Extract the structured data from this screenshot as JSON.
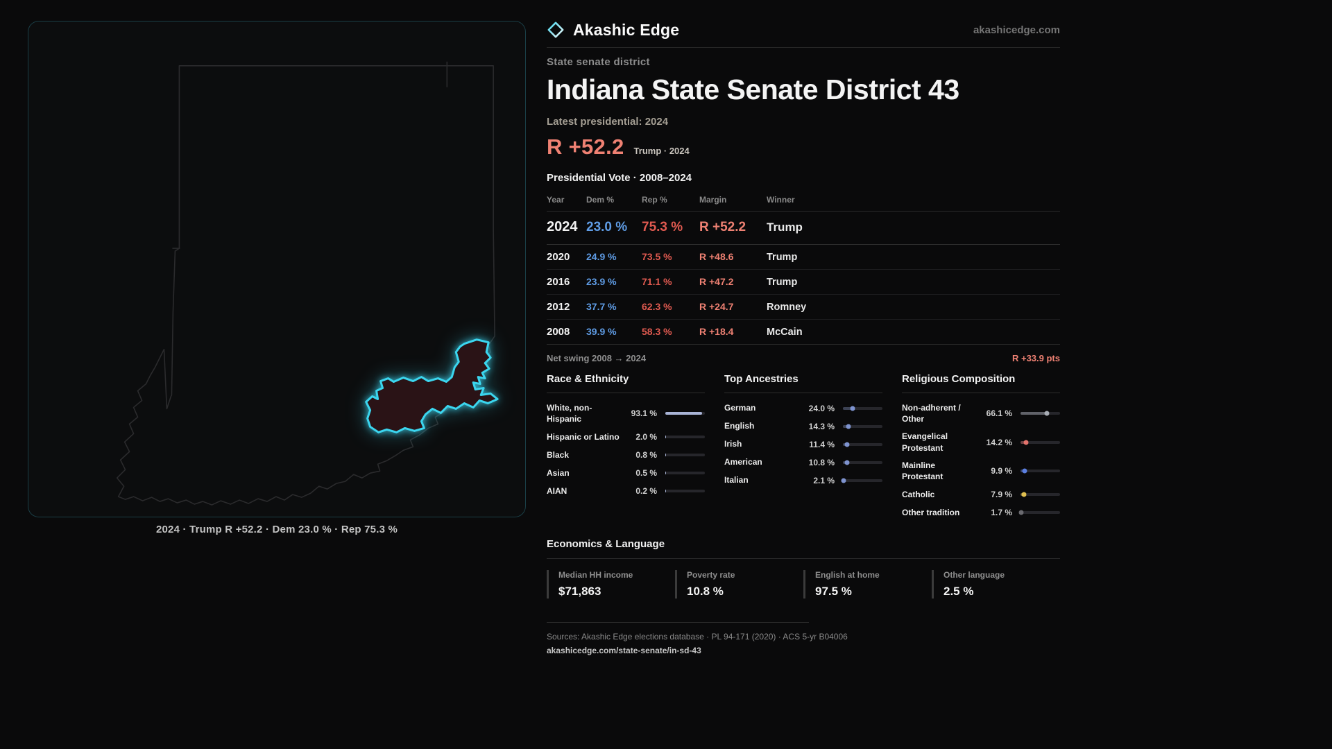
{
  "colors": {
    "accent_cyan": "#3bd6ef",
    "district_fill": "#2a1316",
    "rep_red": "#e05a50",
    "margin_red": "#ef8173",
    "dem_blue": "#5f9ce5",
    "bar_fill": "#a9b4d6",
    "ancestry_fill": "#3c4254",
    "ancestry_dot": "#7e93cf"
  },
  "header": {
    "brand": "Akashic Edge",
    "site": "akashicedge.com"
  },
  "map": {
    "caption": "2024 · Trump R +52.2 · Dem 23.0 % · Rep 75.3 %"
  },
  "profile": {
    "kicker": "State senate district",
    "title": "Indiana State Senate District 43",
    "latest_label": "Latest presidential: 2024",
    "margin_big": "R +52.2",
    "margin_context": "Trump · 2024",
    "table_title": "Presidential Vote · 2008–2024"
  },
  "vote_table": {
    "columns": [
      "Year",
      "Dem %",
      "Rep %",
      "Margin",
      "Winner"
    ],
    "rows": [
      {
        "year": "2024",
        "dem": "23.0 %",
        "rep": "75.3 %",
        "margin": "R +52.2",
        "winner": "Trump"
      },
      {
        "year": "2020",
        "dem": "24.9 %",
        "rep": "73.5 %",
        "margin": "R +48.6",
        "winner": "Trump"
      },
      {
        "year": "2016",
        "dem": "23.9 %",
        "rep": "71.1 %",
        "margin": "R +47.2",
        "winner": "Trump"
      },
      {
        "year": "2012",
        "dem": "37.7 %",
        "rep": "62.3 %",
        "margin": "R +24.7",
        "winner": "Romney"
      },
      {
        "year": "2008",
        "dem": "39.9 %",
        "rep": "58.3 %",
        "margin": "R +18.4",
        "winner": "McCain"
      }
    ]
  },
  "net_swing": {
    "label": "Net swing 2008 → 2024",
    "value": "R +33.9 pts"
  },
  "demographics": {
    "race": {
      "title": "Race & Ethnicity",
      "rows": [
        {
          "label": "White, non-Hispanic",
          "value": "93.1 %",
          "pct": 93.1
        },
        {
          "label": "Hispanic or Latino",
          "value": "2.0 %",
          "pct": 2.0
        },
        {
          "label": "Black",
          "value": "0.8 %",
          "pct": 0.8
        },
        {
          "label": "Asian",
          "value": "0.5 %",
          "pct": 0.5
        },
        {
          "label": "AIAN",
          "value": "0.2 %",
          "pct": 0.2
        }
      ]
    },
    "ancestries": {
      "title": "Top Ancestries",
      "rows": [
        {
          "label": "German",
          "value": "24.0 %",
          "pct": 24.0
        },
        {
          "label": "English",
          "value": "14.3 %",
          "pct": 14.3
        },
        {
          "label": "Irish",
          "value": "11.4 %",
          "pct": 11.4
        },
        {
          "label": "American",
          "value": "10.8 %",
          "pct": 10.8
        },
        {
          "label": "Italian",
          "value": "2.1 %",
          "pct": 2.1
        }
      ]
    },
    "religion": {
      "title": "Religious Composition",
      "rows": [
        {
          "label": "Non-adherent / Other",
          "value": "66.1 %",
          "pct": 66.1,
          "color": "#a8adb5",
          "fill": "rgba(168,173,181,0.45)"
        },
        {
          "label": "Evangelical Protestant",
          "value": "14.2 %",
          "pct": 14.2,
          "color": "#e4736c",
          "fill": "rgba(228,115,108,0.35)"
        },
        {
          "label": "Mainline Protestant",
          "value": "9.9 %",
          "pct": 9.9,
          "color": "#5b7fe0",
          "fill": "rgba(91,127,224,0.35)"
        },
        {
          "label": "Catholic",
          "value": "7.9 %",
          "pct": 7.9,
          "color": "#e0c050",
          "fill": "rgba(224,192,80,0.35)"
        },
        {
          "label": "Other tradition",
          "value": "1.7 %",
          "pct": 1.7,
          "color": "#6a6a6f",
          "fill": "rgba(106,106,111,0.4)"
        }
      ]
    }
  },
  "economics": {
    "title": "Economics & Language",
    "stats": [
      {
        "label": "Median HH income",
        "value": "$71,863"
      },
      {
        "label": "Poverty rate",
        "value": "10.8 %"
      },
      {
        "label": "English at home",
        "value": "97.5 %"
      },
      {
        "label": "Other language",
        "value": "2.5 %"
      }
    ]
  },
  "footer": {
    "sources": "Sources: Akashic Edge elections database · PL 94-171 (2020) · ACS 5-yr B04006",
    "link": "akashicedge.com/state-senate/in-sd-43"
  }
}
